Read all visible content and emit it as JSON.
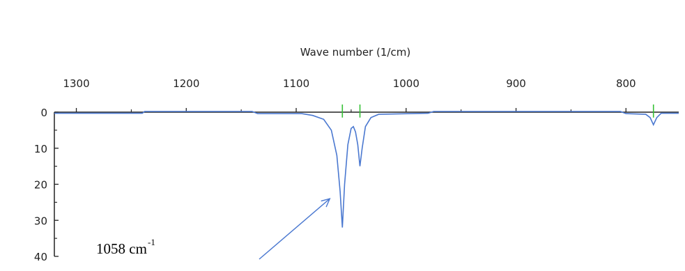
{
  "chart_data": {
    "type": "line",
    "xlabel": "Wave number (1/cm)",
    "ylabel": "",
    "x_ticks": [
      1300,
      1200,
      1100,
      1000,
      900,
      800
    ],
    "y_ticks": [
      0,
      10,
      20,
      30,
      40
    ],
    "xlim": [
      1320,
      752
    ],
    "ylim": [
      0,
      40
    ],
    "x_axis_position": "top",
    "y_axis_inverted": true,
    "grid": false,
    "series": [
      {
        "color": "#4a78d0",
        "points": [
          [
            1320,
            0.3
          ],
          [
            1240,
            0.3
          ],
          [
            1238,
            -0.2
          ],
          [
            1140,
            -0.2
          ],
          [
            1135,
            0.4
          ],
          [
            1095,
            0.4
          ],
          [
            1085,
            0.9
          ],
          [
            1075,
            2.0
          ],
          [
            1068,
            5.0
          ],
          [
            1063,
            12.0
          ],
          [
            1060,
            22.0
          ],
          [
            1058,
            32.0
          ],
          [
            1056,
            20.0
          ],
          [
            1053,
            9.0
          ],
          [
            1050,
            4.5
          ],
          [
            1048,
            4.0
          ],
          [
            1046,
            5.5
          ],
          [
            1044,
            9.0
          ],
          [
            1042,
            15.0
          ],
          [
            1040,
            10.0
          ],
          [
            1037,
            4.0
          ],
          [
            1032,
            1.5
          ],
          [
            1025,
            0.6
          ],
          [
            980,
            0.3
          ],
          [
            975,
            -0.2
          ],
          [
            805,
            -0.2
          ],
          [
            800,
            0.4
          ],
          [
            782,
            0.6
          ],
          [
            778,
            1.5
          ],
          [
            775,
            3.5
          ],
          [
            772,
            1.5
          ],
          [
            768,
            0.3
          ],
          [
            752,
            0.3
          ]
        ]
      }
    ],
    "peak_markers": [
      {
        "x": 1058,
        "color": "#35c135"
      },
      {
        "x": 1042,
        "color": "#35c135"
      },
      {
        "x": 775,
        "color": "#35c135"
      }
    ],
    "annotation": {
      "text": "1058 cm",
      "superscript": "-1",
      "arrow_color": "#4a78d0",
      "points_to_x": 1058
    }
  }
}
